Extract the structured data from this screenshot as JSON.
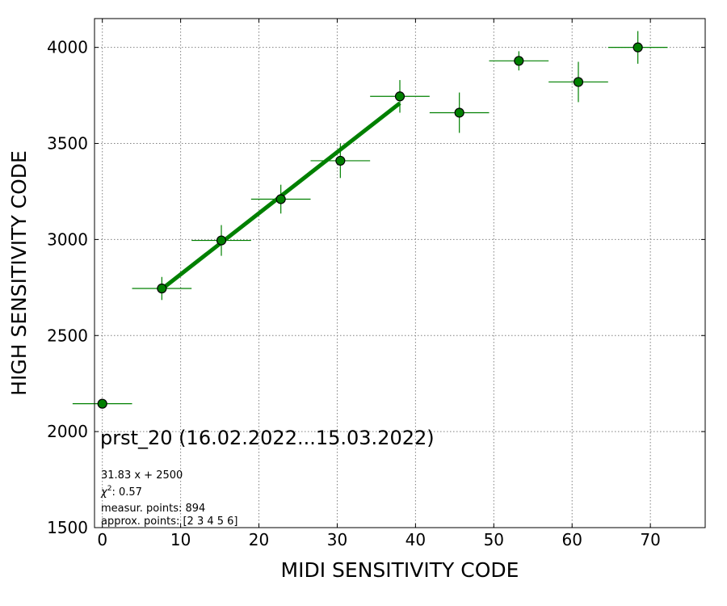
{
  "chart_data": {
    "type": "scatter",
    "xlabel": "MIDI SENSITIVITY CODE",
    "ylabel": "HIGH SENSITIVITY CODE",
    "xlim": [
      -1,
      77
    ],
    "ylim": [
      1500,
      4150
    ],
    "xticks": [
      0,
      10,
      20,
      30,
      40,
      50,
      60,
      70
    ],
    "yticks": [
      1500,
      2000,
      2500,
      3000,
      3500,
      4000
    ],
    "grid": true,
    "points": [
      {
        "x": 0.0,
        "y": 2145,
        "xerr": 3.8,
        "yerr": 0
      },
      {
        "x": 7.6,
        "y": 2745,
        "xerr": 3.8,
        "yerr": 60
      },
      {
        "x": 15.2,
        "y": 2995,
        "xerr": 3.8,
        "yerr": 80
      },
      {
        "x": 22.8,
        "y": 3210,
        "xerr": 3.8,
        "yerr": 75
      },
      {
        "x": 30.4,
        "y": 3410,
        "xerr": 3.8,
        "yerr": 90
      },
      {
        "x": 38.0,
        "y": 3745,
        "xerr": 3.8,
        "yerr": 85
      },
      {
        "x": 45.6,
        "y": 3660,
        "xerr": 3.8,
        "yerr": 105
      },
      {
        "x": 53.2,
        "y": 3930,
        "xerr": 3.8,
        "yerr": 50
      },
      {
        "x": 60.8,
        "y": 3820,
        "xerr": 3.8,
        "yerr": 105
      },
      {
        "x": 68.4,
        "y": 4000,
        "xerr": 3.8,
        "yerr": 85
      }
    ],
    "fit": {
      "slope": 31.83,
      "intercept": 2500,
      "x_range": [
        7.6,
        38.0
      ]
    },
    "colors": {
      "marker": "#008000",
      "marker_edge": "#000000",
      "error_bar": "#008000",
      "fit_line": "#008000",
      "grid": "#808080"
    },
    "annotations": {
      "title": "prst_20 (16.02.2022...15.03.2022)",
      "equation": "31.83 x + 2500",
      "chi_label": "χ",
      "chi_sup": "2",
      "chi_value": ": 0.57",
      "measur_points": "measur. points: 894",
      "approx_points": "approx. points: [2 3 4 5 6]"
    }
  }
}
